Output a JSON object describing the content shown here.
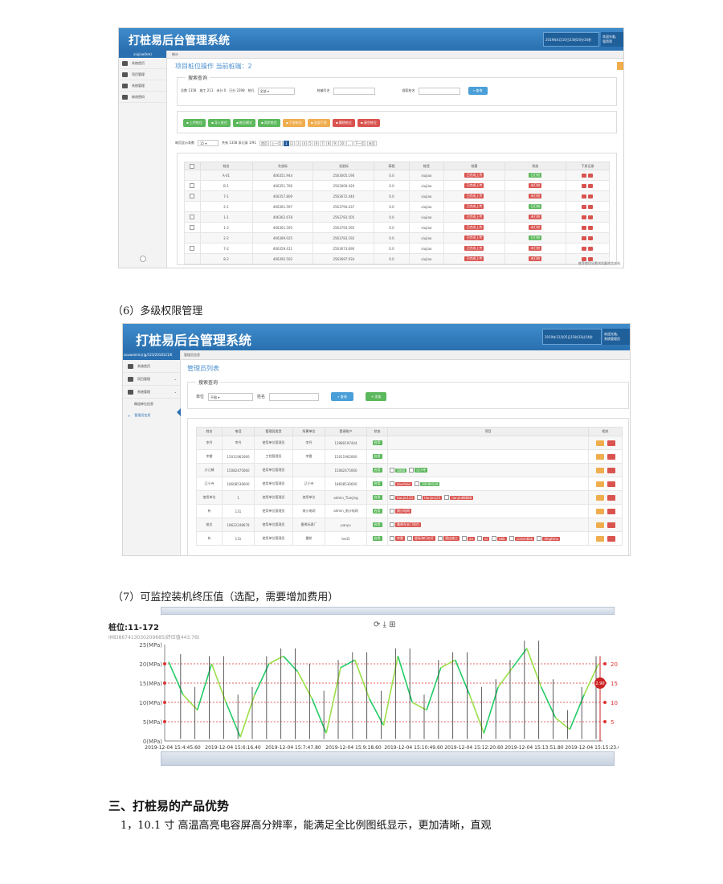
{
  "shot1": {
    "title": "打桩易后台管理系统",
    "datetime": "2019年4月10日23时20分34秒",
    "user_lines": [
      "欢迎光临,",
      "强哥哥"
    ],
    "sidebar_user": "xiujiao(hm)",
    "sidebar": [
      "系统首页",
      "项目管理",
      "系统管理",
      "修改密码"
    ],
    "tab": "统计",
    "page_title": "项目桩位操作 当前桩端：2",
    "search_legend": "搜索查询",
    "stats": [
      "总数 1358",
      "施工 211",
      "未分 0",
      "已分 2398"
    ],
    "status_label": "桩孔",
    "status_value": "全部",
    "pile_name_label": "桩编号名",
    "machine_label": "搜索桩名",
    "search_btn": "查询",
    "actions": [
      "上传桩位",
      "导入桩位",
      "桩位模式",
      "同步桩位",
      "下发桩位",
      "全部下发",
      "删除桩位",
      "清空桩位"
    ],
    "action_colors": [
      "grn",
      "grn",
      "grn",
      "grn",
      "org",
      "org",
      "red",
      "red"
    ],
    "page_size_label": "每页显示条数",
    "page_size": "15",
    "total_text": "共有 1358 条记录 1/91",
    "pages": [
      "首页",
      "上一页",
      "1",
      "2",
      "3",
      "4",
      "5",
      "6",
      "7",
      "8",
      "9",
      "10",
      "...",
      "下一页",
      "末页"
    ],
    "columns": [
      "",
      "桩名",
      "东坐标",
      "北坐标",
      "高程",
      "桩径",
      "桩基",
      "状态",
      "下发记录"
    ],
    "rows": [
      [
        "",
        "A-01",
        "406351.944",
        "2563005.190",
        "0.0",
        "xiujiao",
        "已完成上传",
        "已打桩"
      ],
      [
        "☐",
        "B-1",
        "406351.766",
        "2563009.420",
        "0.0",
        "xiujiao",
        "已完成上传",
        "未打桩"
      ],
      [
        "☐",
        "7-1",
        "406357.809",
        "2563672.440",
        "0.0",
        "xiujiao",
        "已完成上传",
        "未打桩"
      ],
      [
        "",
        "2-1",
        "406361.597",
        "2563794.437",
        "0.0",
        "xiujiao",
        "已完成上传",
        "已打桩"
      ],
      [
        "☐",
        "1-1",
        "406362.678",
        "2563783.505",
        "0.0",
        "xiujiao",
        "已完成上传",
        "未打桩"
      ],
      [
        "☐",
        "1-2",
        "406361.595",
        "2563793.595",
        "0.0",
        "xiujiao",
        "已完成上传",
        "未打桩"
      ],
      [
        "",
        "2-2",
        "406389.025",
        "2563783.192",
        "0.0",
        "xiujiao",
        "已完成上传",
        "已打桩"
      ],
      [
        "☐",
        "7-2",
        "406359.411",
        "2563673.690",
        "0.0",
        "xiujiao",
        "已完成上传",
        "未打桩"
      ],
      [
        "",
        "8-2",
        "406392.502",
        "2563697.934",
        "0.0",
        "xiujiao",
        "已完成上传",
        "未打桩"
      ]
    ],
    "footer_note": "推荐使用谷歌浏览器浏览本站"
  },
  "caption6": "（6）多级权限管理",
  "shot2": {
    "title": "打桩易后台管理系统",
    "datetime": "2019年12月05日15时33分54秒",
    "user_lines": [
      "欢迎光临,",
      "系统管理员"
    ],
    "sidebar_user": "zouweimin|r|g/123/2018121/6",
    "sidebar": [
      "系统首页",
      "项目管理",
      "系统管理",
      "做组单位信息",
      "管理员信息"
    ],
    "tab": "管理员信息",
    "page_title": "管理员列表",
    "search_legend": "搜索查询",
    "unit_label": "单位",
    "unit_value": "不限",
    "name_label": "姓名",
    "search_btn": "查询",
    "add_btn": "添加",
    "columns": [
      "姓名",
      "电话",
      "管理员类型",
      "所属单位",
      "登录账户",
      "状态",
      "项目",
      "相关"
    ],
    "rows": [
      {
        "c": [
          "李丹",
          "李丹",
          "使用单位管理员",
          "李丹",
          "13980197444",
          "启用"
        ],
        "p": []
      },
      {
        "c": [
          "李雷",
          "15011962060",
          "工程管理员",
          "李雷",
          "15011962060",
          "启用"
        ],
        "p": []
      },
      {
        "c": [
          "沙江精",
          "15082475060",
          "使用单位管理员",
          "",
          "15082475060",
          "启用"
        ],
        "p": [
          [
            "3000",
            "grn"
          ],
          [
            "辽小寺",
            "grn"
          ]
        ]
      },
      {
        "c": [
          "辽小寺",
          "18608536600",
          "使用单位管理员",
          "辽小寺",
          "18608536600",
          "启用"
        ],
        "p": [
          [
            "zoumiao",
            "red"
          ],
          [
            "20190120",
            "grn"
          ]
        ]
      },
      {
        "c": [
          "使用单位",
          "1",
          "使用单位管理员",
          "使用单位",
          "admin_Tianjing",
          "启用"
        ],
        "p": [
          [
            "tianjin123",
            "red"
          ],
          [
            "tianjin125",
            "red"
          ],
          [
            "tianjin88888",
            "red"
          ]
        ]
      },
      {
        "c": [
          "有",
          "131",
          "使用单位管理员",
          "南沙电网",
          "admin_南沙电网",
          "启用"
        ],
        "p": [
          [
            "南沙电网",
            "red"
          ]
        ]
      },
      {
        "c": [
          "姚总",
          "18622248678",
          "使用单位管理员",
          "番禺标建厂",
          "panyu",
          "启用"
        ],
        "p": [
          [
            "番禺东长门项目",
            "red"
          ]
        ]
      },
      {
        "c": [
          "有",
          "131",
          "使用单位管理员",
          "曼航",
          "test5",
          "启用"
        ],
        "p": [
          [
            "李雷",
            "red"
          ],
          [
            "星际海行杠杆",
            "red"
          ],
          [
            "酒店施工",
            "red"
          ],
          [
            "aa",
            "red"
          ],
          [
            "ss",
            "red"
          ],
          [
            "bbb",
            "red"
          ],
          [
            "cccbmbbb",
            "red"
          ],
          [
            "dingfenu",
            "red"
          ]
        ]
      }
    ]
  },
  "caption7": "（7）可监控装机终压值（选配，需要增加费用）",
  "chart_data": {
    "type": "line",
    "title": "桩位:11-172",
    "subtitle": "IMEI867413030209685|终压值443.76t",
    "ylabel": "",
    "yticks_left": [
      "0(MPa)",
      "5(MPa)",
      "10(MPa)",
      "15(MPa)",
      "20(MPa)",
      "25(MPa)"
    ],
    "yticks_right": [
      "5",
      "10",
      "15",
      "20"
    ],
    "ylim": [
      0,
      25
    ],
    "reference_lines": [
      5,
      10,
      15,
      20
    ],
    "xticks": [
      "2019-12-04 15:4:45.60",
      "2019-12-04 15:6:16.40",
      "2019-12-04 15:7:47.80",
      "2019-12-04 15:9:18.60",
      "2019-12-04 15:10:49.60",
      "2019-12-04 15:12:20.60",
      "2019-12-04 15:13:51.80",
      "2019-12-04 15:15:23.00"
    ],
    "current_value": "2.90",
    "toolbar": "⟳ ⤓ ⊞",
    "series": [
      {
        "segments": [
          [
            0,
            19
          ],
          [
            2,
            18
          ],
          [
            4,
            13
          ],
          [
            6,
            10
          ],
          [
            8,
            10
          ],
          [
            9,
            1
          ],
          [
            10,
            8
          ],
          [
            11,
            20
          ],
          [
            12,
            19
          ],
          [
            13,
            18
          ],
          [
            14,
            19
          ],
          [
            15,
            21
          ],
          [
            16,
            10
          ],
          [
            17,
            1
          ],
          [
            18,
            9
          ],
          [
            19,
            20
          ],
          [
            20,
            19
          ],
          [
            21,
            10
          ],
          [
            22,
            1
          ],
          [
            23,
            20
          ]
        ],
        "color": "#2bd36b"
      }
    ],
    "values_summary": [
      20.5,
      12,
      8,
      20,
      10,
      1,
      12,
      20,
      22,
      18,
      11,
      2,
      19,
      21,
      11,
      4,
      22,
      10,
      8,
      19,
      21,
      12,
      2,
      14,
      19,
      24,
      14,
      6,
      3,
      12,
      20
    ]
  },
  "heading3": "三、打桩易的产品优势",
  "para1": "1，10.1 寸  高温高亮电容屏高分辨率，能满足全比例图纸显示，更加清晰，直观"
}
